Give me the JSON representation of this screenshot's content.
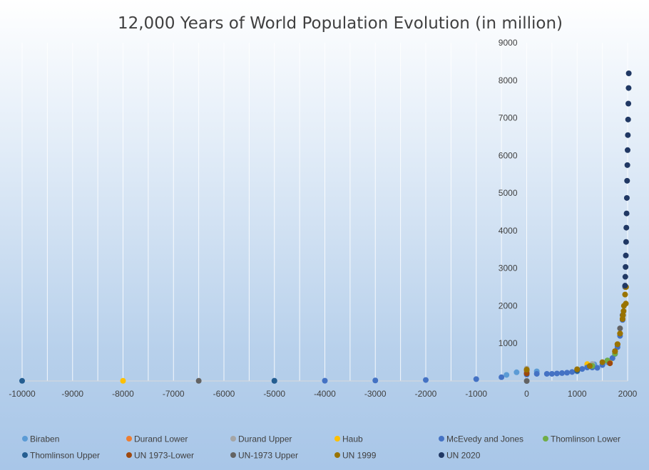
{
  "chart_data": {
    "type": "scatter",
    "title": "12,000 Years of World Population Evolution (in million)",
    "xlabel": "",
    "ylabel": "",
    "xlim": [
      -10000,
      2000
    ],
    "ylim": [
      0,
      9000
    ],
    "x_ticks": [
      -10000,
      -9000,
      -8000,
      -7000,
      -6000,
      -5000,
      -4000,
      -3000,
      -2000,
      -1000,
      0,
      1000,
      2000
    ],
    "y_ticks": [
      1000,
      2000,
      3000,
      4000,
      5000,
      6000,
      7000,
      8000,
      9000
    ],
    "y_axis_position": "right",
    "grid": "vertical",
    "legend_position": "bottom",
    "series": [
      {
        "name": "Biraben",
        "color": "#5b9bd5",
        "points": [
          [
            -400,
            162
          ],
          [
            -200,
            231
          ],
          [
            1,
            255
          ],
          [
            200,
            256
          ],
          [
            1000,
            254
          ],
          [
            1200,
            400
          ],
          [
            1340,
            443
          ],
          [
            1500,
            427
          ],
          [
            1600,
            498
          ],
          [
            1700,
            603
          ],
          [
            1750,
            770
          ],
          [
            1800,
            954
          ]
        ]
      },
      {
        "name": "Durand Lower",
        "color": "#ed7d31",
        "points": [
          [
            1,
            270
          ],
          [
            1750,
            791
          ],
          [
            1800,
            978
          ]
        ]
      },
      {
        "name": "Durand Upper",
        "color": "#a5a5a5",
        "points": [
          [
            1,
            330
          ],
          [
            1300,
            450
          ],
          [
            1750,
            791
          ]
        ]
      },
      {
        "name": "Haub",
        "color": "#ffc000",
        "points": [
          [
            -8000,
            5
          ],
          [
            1,
            300
          ],
          [
            1200,
            450
          ],
          [
            1650,
            500
          ],
          [
            1850,
            1265
          ],
          [
            1900,
            1656
          ]
        ]
      },
      {
        "name": "McEvedy and Jones",
        "color": "#4472c4",
        "points": [
          [
            -5000,
            5
          ],
          [
            -4000,
            7
          ],
          [
            -3000,
            14
          ],
          [
            -2000,
            27
          ],
          [
            -1000,
            50
          ],
          [
            -500,
            100
          ],
          [
            1,
            170
          ],
          [
            200,
            190
          ],
          [
            400,
            190
          ],
          [
            500,
            190
          ],
          [
            600,
            200
          ],
          [
            700,
            210
          ],
          [
            800,
            220
          ],
          [
            900,
            240
          ],
          [
            1000,
            265
          ],
          [
            1100,
            320
          ],
          [
            1200,
            360
          ],
          [
            1300,
            360
          ],
          [
            1400,
            350
          ],
          [
            1500,
            425
          ],
          [
            1600,
            545
          ],
          [
            1700,
            610
          ],
          [
            1750,
            720
          ],
          [
            1800,
            900
          ],
          [
            1850,
            1200
          ],
          [
            1900,
            1625
          ],
          [
            1950,
            2500
          ]
        ]
      },
      {
        "name": "Thomlinson Lower",
        "color": "#70ad47",
        "points": [
          [
            1300,
            400
          ],
          [
            1600,
            545
          ],
          [
            1750,
            728
          ]
        ]
      },
      {
        "name": "Thomlinson Upper",
        "color": "#255e91",
        "points": [
          [
            -10000,
            4
          ],
          [
            -5000,
            5
          ],
          [
            1,
            200
          ],
          [
            1000,
            275
          ]
        ]
      },
      {
        "name": "UN 1973-Lower",
        "color": "#9e480e",
        "points": [
          [
            1,
            200
          ],
          [
            1650,
            470
          ],
          [
            1750,
            791
          ],
          [
            1800,
            978
          ],
          [
            1850,
            1262
          ],
          [
            1900,
            1650
          ]
        ]
      },
      {
        "name": "UN-1973 Upper",
        "color": "#636363",
        "points": [
          [
            -6500,
            5
          ],
          [
            1,
            0
          ],
          [
            1,
            300
          ],
          [
            1000,
            310
          ],
          [
            1850,
            1400
          ],
          [
            1900,
            1750
          ]
        ]
      },
      {
        "name": "UN 1999",
        "color": "#997300",
        "points": [
          [
            1,
            300
          ],
          [
            1000,
            310
          ],
          [
            1250,
            400
          ],
          [
            1500,
            500
          ],
          [
            1750,
            791
          ],
          [
            1800,
            978
          ],
          [
            1850,
            1262
          ],
          [
            1900,
            1650
          ],
          [
            1910,
            1750
          ],
          [
            1920,
            1860
          ],
          [
            1927,
            2000
          ],
          [
            1950,
            2300
          ],
          [
            1960,
            2500
          ],
          [
            1965,
            2060
          ],
          [
            1970,
            2500
          ]
        ]
      },
      {
        "name": "UN 2020",
        "color": "#203864",
        "points": [
          [
            1950,
            2536
          ],
          [
            1955,
            2773
          ],
          [
            1960,
            3034
          ],
          [
            1965,
            3339
          ],
          [
            1970,
            3700
          ],
          [
            1975,
            4079
          ],
          [
            1980,
            4458
          ],
          [
            1985,
            4870
          ],
          [
            1990,
            5327
          ],
          [
            1995,
            5744
          ],
          [
            2000,
            6143
          ],
          [
            2005,
            6542
          ],
          [
            2010,
            6957
          ],
          [
            2015,
            7380
          ],
          [
            2020,
            7795
          ],
          [
            2023,
            8185
          ]
        ]
      }
    ]
  }
}
